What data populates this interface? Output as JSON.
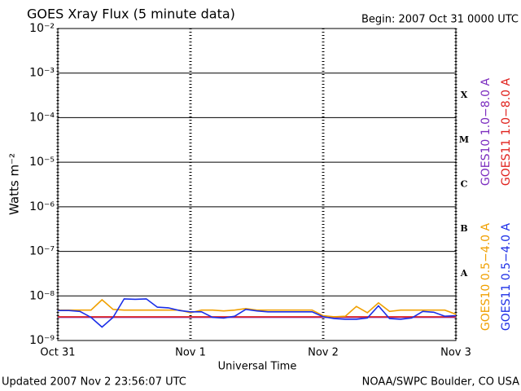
{
  "chart_data": {
    "type": "line",
    "title": "GOES Xray Flux (5 minute data)",
    "begin": "Begin:  2007 Oct 31 0000 UTC",
    "ylabel": "Watts m⁻²",
    "xlabel": "Universal Time",
    "updated": "Updated 2007 Nov  2 23:56:07 UTC",
    "source": "NOAA/SWPC Boulder, CO USA",
    "log_y": true,
    "grid": true,
    "ylim": [
      1e-09,
      0.01
    ],
    "yticks": [
      {
        "value": 1e-09,
        "label": "10⁻⁹"
      },
      {
        "value": 1e-08,
        "label": "10⁻⁸"
      },
      {
        "value": 1e-07,
        "label": "10⁻⁷"
      },
      {
        "value": 1e-06,
        "label": "10⁻⁶"
      },
      {
        "value": 1e-05,
        "label": "10⁻⁵"
      },
      {
        "value": 0.0001,
        "label": "10⁻⁴"
      },
      {
        "value": 0.001,
        "label": "10⁻³"
      },
      {
        "value": 0.01,
        "label": "10⁻²"
      }
    ],
    "xlim": [
      0,
      72
    ],
    "xticks": [
      {
        "value": 0,
        "label": "Oct 31"
      },
      {
        "value": 24,
        "label": "Nov 1"
      },
      {
        "value": 48,
        "label": "Nov 2"
      },
      {
        "value": 72,
        "label": "Nov 3"
      }
    ],
    "classes": [
      {
        "label": "A",
        "value": 1e-08
      },
      {
        "label": "B",
        "value": 1e-07
      },
      {
        "label": "C",
        "value": 1e-06
      },
      {
        "label": "M",
        "value": 1e-05
      },
      {
        "label": "X",
        "value": 0.0001
      }
    ],
    "x": [
      0,
      2,
      4,
      6,
      8,
      10,
      12,
      14,
      16,
      18,
      20,
      22,
      24,
      26,
      28,
      30,
      32,
      34,
      36,
      38,
      40,
      42,
      44,
      46,
      48,
      50,
      52,
      54,
      56,
      58,
      60,
      62,
      64,
      66,
      68,
      70,
      72
    ],
    "series": [
      {
        "name": "GOES10 1.0−8.0 A",
        "color": "#7b2cbf",
        "values": [
          3.3e-09,
          3.3e-09,
          3.3e-09,
          3.3e-09,
          3.3e-09,
          3.3e-09,
          3.3e-09,
          3.3e-09,
          3.3e-09,
          3.3e-09,
          3.3e-09,
          3.3e-09,
          3.3e-09,
          3.3e-09,
          3.3e-09,
          3.3e-09,
          3.3e-09,
          3.3e-09,
          3.3e-09,
          3.3e-09,
          3.3e-09,
          3.3e-09,
          3.3e-09,
          3.3e-09,
          3.3e-09,
          3.3e-09,
          3.3e-09,
          3.3e-09,
          3.3e-09,
          3.3e-09,
          3.3e-09,
          3.3e-09,
          3.3e-09,
          3.3e-09,
          3.3e-09,
          3.3e-09,
          3.3e-09
        ]
      },
      {
        "name": "GOES11 1.0−8.0 A",
        "color": "#e0201b",
        "values": [
          3.4e-09,
          3.4e-09,
          3.4e-09,
          3.4e-09,
          3.4e-09,
          3.4e-09,
          3.4e-09,
          3.4e-09,
          3.4e-09,
          3.4e-09,
          3.4e-09,
          3.4e-09,
          3.4e-09,
          3.4e-09,
          3.4e-09,
          3.4e-09,
          3.4e-09,
          3.4e-09,
          3.4e-09,
          3.4e-09,
          3.4e-09,
          3.4e-09,
          3.4e-09,
          3.4e-09,
          3.4e-09,
          3.4e-09,
          3.4e-09,
          3.4e-09,
          3.4e-09,
          3.4e-09,
          3.4e-09,
          3.4e-09,
          3.4e-09,
          3.4e-09,
          3.4e-09,
          3.4e-09,
          3.4e-09
        ]
      },
      {
        "name": "GOES10 0.5−4.0 A",
        "color": "#f0a000",
        "values": [
          4.8e-09,
          4.8e-09,
          4.8e-09,
          4.8e-09,
          8.2e-09,
          5e-09,
          4.8e-09,
          4.8e-09,
          4.8e-09,
          4.8e-09,
          4.8e-09,
          4.8e-09,
          4.2e-09,
          4.8e-09,
          4.8e-09,
          4.6e-09,
          4.8e-09,
          5.2e-09,
          4.8e-09,
          4.8e-09,
          4.8e-09,
          4.8e-09,
          4.8e-09,
          4.8e-09,
          3.6e-09,
          3.4e-09,
          3.5e-09,
          5.8e-09,
          4.2e-09,
          7e-09,
          4.5e-09,
          4.8e-09,
          4.8e-09,
          4.8e-09,
          4.8e-09,
          4.8e-09,
          3.9e-09
        ]
      },
      {
        "name": "GOES11 0.5−4.0 A",
        "color": "#1a2ee8",
        "values": [
          4.7e-09,
          4.7e-09,
          4.5e-09,
          3.3e-09,
          2e-09,
          3.3e-09,
          8.6e-09,
          8.4e-09,
          8.6e-09,
          5.6e-09,
          5.4e-09,
          4.7e-09,
          4.4e-09,
          4.4e-09,
          3.3e-09,
          3.2e-09,
          3.5e-09,
          5e-09,
          4.6e-09,
          4.4e-09,
          4.4e-09,
          4.4e-09,
          4.4e-09,
          4.4e-09,
          3.4e-09,
          3.1e-09,
          3e-09,
          3e-09,
          3.2e-09,
          6e-09,
          3.1e-09,
          3e-09,
          3.2e-09,
          4.5e-09,
          4.3e-09,
          3.5e-09,
          3.6e-09
        ]
      }
    ]
  }
}
